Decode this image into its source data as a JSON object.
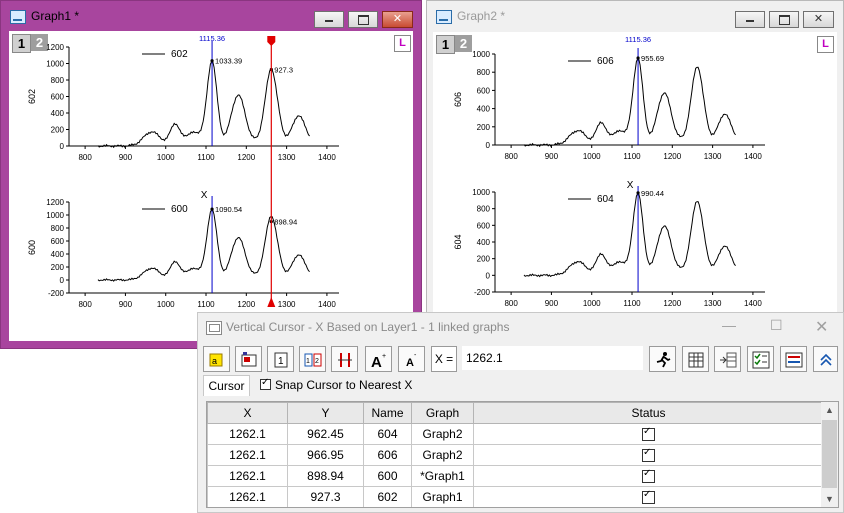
{
  "graph1": {
    "title": "Graph1 *",
    "layer_buttons": [
      "1",
      "2"
    ],
    "badge": "L",
    "panels": [
      {
        "legend": "602",
        "ylabel": "602",
        "ytick_values": [
          0,
          200,
          400,
          600,
          800,
          1000,
          1200
        ],
        "yticks": [
          "0",
          "200",
          "400",
          "600",
          "800",
          "1000",
          "1200"
        ],
        "xticks": [
          "800",
          "900",
          "1000",
          "1100",
          "1200",
          "1300",
          "1400"
        ],
        "cursor_x_label": "1115.36",
        "blue_label": "1033.39",
        "red_label": "927.3",
        "blue_point": [
          1115,
          1033.39
        ],
        "red_point": [
          1262,
          927.3
        ]
      },
      {
        "legend": "600",
        "ylabel": "600",
        "xlabel": "X",
        "ytick_values": [
          -200,
          0,
          200,
          400,
          600,
          800,
          1000,
          1200
        ],
        "yticks": [
          "-200",
          "0",
          "200",
          "400",
          "600",
          "800",
          "1000",
          "1200"
        ],
        "xticks": [
          "800",
          "900",
          "1000",
          "1100",
          "1200",
          "1300",
          "1400"
        ],
        "blue_label": "1090.54",
        "red_label": "898.94",
        "blue_point": [
          1115,
          1090.54
        ],
        "red_point": [
          1262,
          898.94
        ]
      }
    ]
  },
  "graph2": {
    "title": "Graph2 *",
    "layer_buttons": [
      "1",
      "2"
    ],
    "badge": "L",
    "panels": [
      {
        "legend": "606",
        "ylabel": "606",
        "ytick_values": [
          0,
          200,
          400,
          600,
          800,
          1000
        ],
        "yticks": [
          "0",
          "200",
          "400",
          "600",
          "800",
          "1000"
        ],
        "xticks": [
          "800",
          "900",
          "1000",
          "1100",
          "1200",
          "1300",
          "1400"
        ],
        "cursor_x_label": "1115.36",
        "blue_label": "955.69",
        "blue_point": [
          1115,
          955.69
        ]
      },
      {
        "legend": "604",
        "ylabel": "604",
        "xlabel": "X",
        "ytick_values": [
          -200,
          0,
          200,
          400,
          600,
          800,
          1000
        ],
        "yticks": [
          "-200",
          "0",
          "200",
          "400",
          "600",
          "800",
          "1000"
        ],
        "xticks": [
          "800",
          "900",
          "1000",
          "1100",
          "1200",
          "1300",
          "1400"
        ],
        "blue_label": "990.44",
        "blue_point": [
          1115,
          990.44
        ]
      }
    ]
  },
  "dialog": {
    "title": "Vertical Cursor - X Based on Layer1 - 1 linked graphs",
    "x_eq": "X =",
    "x_value": "1262.1",
    "tab": "Cursor",
    "snap_label": "Snap Cursor to Nearest X",
    "columns": [
      "X",
      "Y",
      "Name",
      "Graph",
      "Status"
    ],
    "rows": [
      {
        "x": "1262.1",
        "y": "962.45",
        "name": "604",
        "graph": "Graph2"
      },
      {
        "x": "1262.1",
        "y": "966.95",
        "name": "606",
        "graph": "Graph2"
      },
      {
        "x": "1262.1",
        "y": "898.94",
        "name": "600",
        "graph": "*Graph1"
      },
      {
        "x": "1262.1",
        "y": "927.3",
        "name": "602",
        "graph": "Graph1"
      }
    ]
  },
  "colors": {
    "active_frame": "#a8459e",
    "cursor_blue": "#0000cc",
    "cursor_red": "#e00000",
    "curve": "#000000"
  }
}
